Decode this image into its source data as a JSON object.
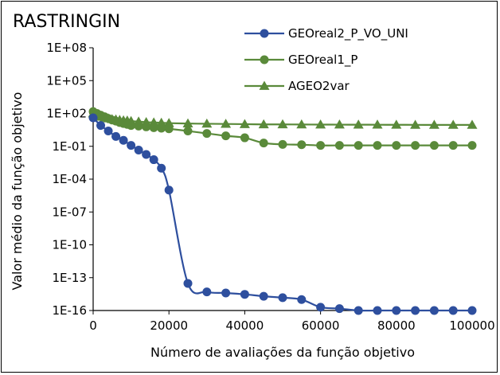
{
  "chart_data": {
    "type": "line",
    "title": "RASTRINGIN",
    "xlabel": "Número de avaliações da função objetivo",
    "ylabel": "Valor médio da função objetivo",
    "xlim": [
      0,
      100000
    ],
    "yscale": "log",
    "ylim": [
      1e-16,
      100000000.0
    ],
    "xticks": [
      "0",
      "20000",
      "40000",
      "60000",
      "80000",
      "100000"
    ],
    "yticks": [
      "1E-16",
      "1E-13",
      "1E-10",
      "1E-07",
      "1E-04",
      "1E-01",
      "1E+02",
      "1E+05",
      "1E+08"
    ],
    "grid": false,
    "legend_position": "top-right",
    "series": [
      {
        "name": "GEOreal2_P_VO_UNI",
        "color": "#2e4f9e",
        "marker": "circle",
        "x": [
          0,
          2000,
          4000,
          6000,
          8000,
          10000,
          12000,
          14000,
          16000,
          18000,
          20000,
          25000,
          30000,
          35000,
          40000,
          45000,
          50000,
          55000,
          60000,
          65000,
          70000,
          75000,
          80000,
          85000,
          90000,
          95000,
          100000
        ],
        "y": [
          40,
          8,
          2.5,
          0.8,
          0.35,
          0.12,
          0.045,
          0.018,
          0.006,
          0.001,
          1e-05,
          3e-14,
          5e-15,
          4e-15,
          3e-15,
          2e-15,
          1.5e-15,
          1e-15,
          2e-16,
          1.5e-16,
          1e-16,
          1e-16,
          1e-16,
          1e-16,
          1e-16,
          1e-16,
          1e-16
        ]
      },
      {
        "name": "GEOreal1_P",
        "color": "#5a8a3a",
        "marker": "circle",
        "x": [
          0,
          1000,
          2000,
          3000,
          4000,
          5000,
          6000,
          7000,
          8000,
          9000,
          10000,
          12000,
          14000,
          16000,
          18000,
          20000,
          25000,
          30000,
          35000,
          40000,
          45000,
          50000,
          55000,
          60000,
          65000,
          70000,
          75000,
          80000,
          85000,
          90000,
          95000,
          100000
        ],
        "y": [
          150,
          100,
          70,
          50,
          35,
          25,
          20,
          15,
          12,
          10,
          8,
          7,
          6,
          5,
          4.5,
          4,
          2.5,
          1.5,
          0.9,
          0.6,
          0.2,
          0.15,
          0.14,
          0.12,
          0.12,
          0.12,
          0.12,
          0.12,
          0.12,
          0.12,
          0.12,
          0.12
        ]
      },
      {
        "name": "AGEO2var",
        "color": "#5a8a3a",
        "marker": "triangle",
        "x": [
          0,
          1000,
          2000,
          3000,
          4000,
          5000,
          6000,
          7000,
          8000,
          9000,
          10000,
          12000,
          14000,
          16000,
          18000,
          20000,
          25000,
          30000,
          35000,
          40000,
          45000,
          50000,
          55000,
          60000,
          65000,
          70000,
          75000,
          80000,
          85000,
          90000,
          95000,
          100000
        ],
        "y": [
          100,
          70,
          50,
          40,
          35,
          30,
          28,
          25,
          23,
          22,
          20,
          18,
          16,
          15,
          14,
          13,
          12,
          11.5,
          11,
          10.5,
          10,
          10,
          9.8,
          9.6,
          9.5,
          9.4,
          9.3,
          9.2,
          9.1,
          9.0,
          9.0,
          9.0
        ]
      }
    ]
  }
}
